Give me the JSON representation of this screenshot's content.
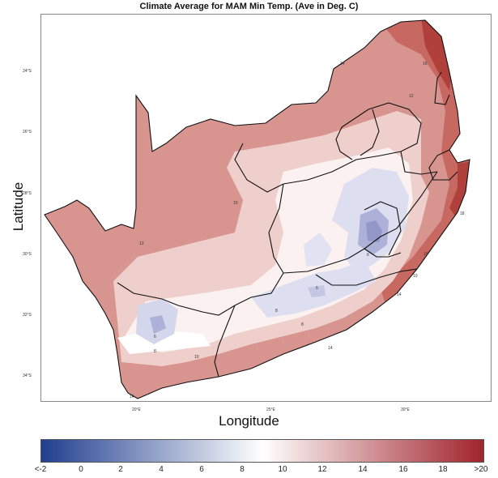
{
  "title": "Climate Average for MAM Min Temp. (Ave in Deg. C)",
  "xlabel": "Longitude",
  "ylabel": "Latitude",
  "y_ticks": [
    "24°S",
    "26°S",
    "28°S",
    "30°S",
    "32°S",
    "34°S"
  ],
  "x_ticks": [
    "20°E",
    "25°E",
    "30°E"
  ],
  "colorbar": {
    "labels": [
      "<-2",
      "0",
      "2",
      "4",
      "6",
      "8",
      "10",
      "12",
      "14",
      "16",
      "18",
      ">20"
    ],
    "min_color": "#213f8f",
    "mid_color": "#ffffff",
    "max_color": "#a0242b"
  },
  "contour_labels": [
    "14",
    "16",
    "12",
    "10",
    "12",
    "10",
    "8",
    "6",
    "6",
    "8",
    "6",
    "8",
    "10",
    "14",
    "14",
    "16",
    "18",
    "14"
  ]
}
